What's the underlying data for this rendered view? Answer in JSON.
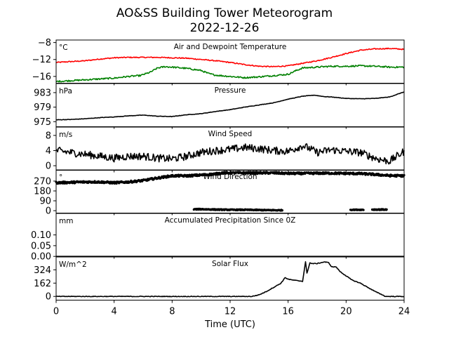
{
  "figure": {
    "title_line1": "AO&SS Building Tower Meteorogram",
    "title_line2": "2022-12-26"
  },
  "chart_data": [
    {
      "type": "line",
      "title": "Air and Dewpoint Temperature",
      "unit": "°C",
      "xlim": [
        0,
        24
      ],
      "ylim": [
        -17.6,
        -7.4
      ],
      "yticks": [
        -8,
        -12,
        -16
      ],
      "ytick_labels": [
        "−8",
        "−12",
        "−16"
      ],
      "series": [
        {
          "color": "#ff0000",
          "x": [
            0,
            1,
            2,
            3,
            4,
            5,
            6,
            7,
            8,
            9,
            10,
            11,
            12,
            13,
            14,
            15,
            16,
            17,
            18,
            19,
            20,
            21,
            22,
            23,
            24
          ],
          "values": [
            -12.7,
            -12.5,
            -12.3,
            -11.9,
            -11.6,
            -11.5,
            -11.5,
            -11.5,
            -11.6,
            -11.7,
            -12.0,
            -12.3,
            -12.7,
            -13.2,
            -13.6,
            -13.7,
            -13.5,
            -12.9,
            -12.3,
            -11.5,
            -10.6,
            -9.8,
            -9.5,
            -9.4,
            -9.6
          ],
          "noise": 0.12
        },
        {
          "color": "#008000",
          "x": [
            0,
            1,
            2,
            3,
            4,
            5,
            5.8,
            6.5,
            7.0,
            7.5,
            8,
            9,
            10,
            10.5,
            11,
            12,
            13,
            14,
            15,
            16,
            16.5,
            17,
            18,
            19,
            20,
            21,
            22,
            23,
            24
          ],
          "values": [
            -17.2,
            -17.0,
            -16.8,
            -16.6,
            -16.4,
            -16.0,
            -15.8,
            -15.0,
            -14.0,
            -13.7,
            -13.8,
            -14.1,
            -14.6,
            -15.3,
            -15.7,
            -16.0,
            -16.3,
            -16.1,
            -15.8,
            -15.5,
            -14.7,
            -14.0,
            -13.8,
            -13.6,
            -13.6,
            -13.5,
            -13.6,
            -13.8,
            -13.8
          ],
          "noise": 0.18
        }
      ]
    },
    {
      "type": "line",
      "title": "Pressure",
      "unit": "hPa",
      "xlim": [
        0,
        24
      ],
      "ylim": [
        973.6,
        985.5
      ],
      "yticks": [
        983,
        979,
        975
      ],
      "ytick_labels": [
        "983",
        "979",
        "975"
      ],
      "series": [
        {
          "color": "#000000",
          "x": [
            0,
            1,
            2,
            3,
            4,
            5,
            6,
            7,
            8,
            9,
            10,
            11,
            12,
            13,
            14,
            15,
            16,
            17,
            17.8,
            18.5,
            19,
            20,
            21,
            22,
            23,
            24
          ],
          "values": [
            975.5,
            975.6,
            975.8,
            976.1,
            976.3,
            976.6,
            976.8,
            976.5,
            976.4,
            976.9,
            977.2,
            977.8,
            978.3,
            979.0,
            979.6,
            980.2,
            981.2,
            982.0,
            982.3,
            981.9,
            981.8,
            981.4,
            981.3,
            981.4,
            981.8,
            983.2
          ],
          "noise": 0.06
        }
      ]
    },
    {
      "type": "line",
      "title": "Wind Speed",
      "unit": "m/s",
      "xlim": [
        0,
        24
      ],
      "ylim": [
        -1.2,
        10.2
      ],
      "yticks": [
        8,
        4,
        0
      ],
      "ytick_labels": [
        "8",
        "4",
        "0"
      ],
      "series": [
        {
          "color": "#000000",
          "x": [
            0,
            1,
            2,
            3,
            4,
            5,
            6,
            7,
            8,
            9,
            10,
            11,
            12,
            13,
            14,
            15,
            16,
            17,
            17.5,
            18,
            19,
            20,
            21,
            22,
            22.5,
            23,
            24
          ],
          "values": [
            4.0,
            3.5,
            3.0,
            2.5,
            2.0,
            2.5,
            2.5,
            2.0,
            1.8,
            2.5,
            3.5,
            4.0,
            4.3,
            4.8,
            4.5,
            4.0,
            3.8,
            5.3,
            4.5,
            3.5,
            4.2,
            3.8,
            3.5,
            2.0,
            1.5,
            1.2,
            3.8
          ],
          "noise": 1.0
        }
      ]
    },
    {
      "type": "scatter",
      "title": "Wind Direction",
      "unit": "°",
      "xlim": [
        0,
        24
      ],
      "ylim": [
        -22,
        372
      ],
      "yticks": [
        270,
        180,
        90,
        0
      ],
      "ytick_labels": [
        "270",
        "180",
        "90",
        "0"
      ],
      "series": [
        {
          "color": "#000000",
          "x": [
            0,
            1,
            2,
            3,
            4,
            5,
            6,
            7,
            8,
            9,
            10,
            11,
            11.4,
            12,
            13,
            14,
            15,
            16,
            17,
            18,
            19,
            20,
            21,
            22,
            23,
            24
          ],
          "values": [
            255,
            258,
            262,
            262,
            255,
            262,
            275,
            298,
            318,
            318,
            325,
            335,
            345,
            345,
            345,
            345,
            345,
            340,
            340,
            342,
            342,
            340,
            338,
            330,
            320,
            318
          ],
          "noise": 9
        },
        {
          "color": "#000000",
          "x": [
            9.5,
            10,
            11,
            12,
            13,
            14,
            15,
            15.6
          ],
          "values": [
            12,
            14,
            10,
            8,
            8,
            6,
            4,
            4
          ],
          "noise": 4
        },
        {
          "color": "#000000",
          "x": [
            20.3,
            21.2
          ],
          "values": [
            8,
            8
          ],
          "noise": 3
        },
        {
          "color": "#000000",
          "x": [
            21.8,
            22.8
          ],
          "values": [
            10,
            10
          ],
          "noise": 4
        }
      ]
    },
    {
      "type": "line",
      "title": "Accumulated Precipitation Since 0Z",
      "unit": "mm",
      "xlim": [
        0,
        24
      ],
      "ylim": [
        -0.001,
        0.2
      ],
      "yticks": [
        0.1,
        0.05,
        0.0
      ],
      "ytick_labels": [
        "0.10",
        "0.05",
        "0.00"
      ],
      "series": [
        {
          "color": "#000000",
          "x": [
            0,
            24
          ],
          "values": [
            0,
            0
          ],
          "noise": 0
        }
      ]
    },
    {
      "type": "line",
      "title": "Solar Flux",
      "unit": "W/m^2",
      "xlim": [
        0,
        24
      ],
      "ylim": [
        -45,
        480
      ],
      "yticks": [
        324,
        162,
        0
      ],
      "ytick_labels": [
        "324",
        "162",
        "0"
      ],
      "series": [
        {
          "color": "#000000",
          "x": [
            0,
            13.5,
            14.0,
            14.5,
            15.0,
            15.5,
            15.8,
            16.0,
            16.3,
            16.7,
            17.0,
            17.2,
            17.3,
            17.5,
            17.6,
            18.0,
            18.5,
            18.8,
            19.0,
            19.3,
            19.6,
            20.0,
            20.4,
            21.0,
            21.5,
            22.0,
            22.5,
            22.7,
            24
          ],
          "values": [
            0,
            0,
            20,
            60,
            110,
            160,
            230,
            210,
            200,
            190,
            185,
            420,
            280,
            410,
            400,
            400,
            420,
            410,
            360,
            360,
            300,
            250,
            200,
            160,
            110,
            60,
            20,
            0,
            0
          ],
          "noise": 4
        }
      ]
    }
  ],
  "x_axis": {
    "label": "Time (UTC)",
    "ticks": [
      0,
      4,
      8,
      12,
      16,
      20,
      24
    ],
    "tick_labels": [
      "0",
      "4",
      "8",
      "12",
      "16",
      "20",
      "24"
    ]
  }
}
